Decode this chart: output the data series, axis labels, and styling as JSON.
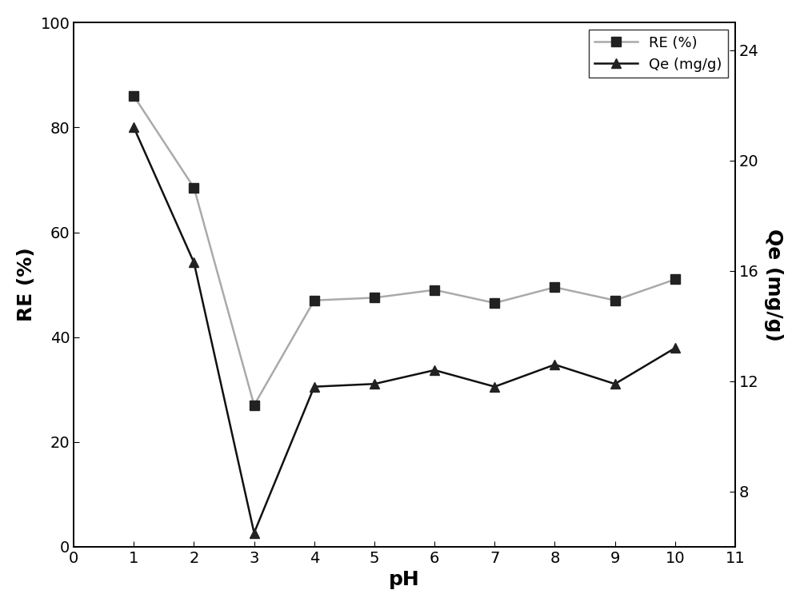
{
  "ph_values": [
    1,
    2,
    3,
    4,
    5,
    6,
    7,
    8,
    9,
    10
  ],
  "RE_values": [
    86,
    68.5,
    27,
    47,
    47.5,
    49,
    46.5,
    49.5,
    47,
    51
  ],
  "Qe_values": [
    21.2,
    16.3,
    6.5,
    11.8,
    11.9,
    12.4,
    11.8,
    12.6,
    11.9,
    13.2
  ],
  "RE_color": "#aaaaaa",
  "Qe_color": "#111111",
  "RE_label": "RE (%)",
  "Qe_label": "Qe (mg/g)",
  "xlabel": "pH",
  "ylabel_left": "RE (%)",
  "ylabel_right": "Qe (mg/g)",
  "xlim": [
    0,
    11
  ],
  "ylim_left": [
    0,
    100
  ],
  "ylim_right": [
    6,
    25
  ],
  "xticks": [
    0,
    1,
    2,
    3,
    4,
    5,
    6,
    7,
    8,
    9,
    10,
    11
  ],
  "yticks_left": [
    0,
    20,
    40,
    60,
    80,
    100
  ],
  "yticks_right": [
    8,
    12,
    16,
    20,
    24
  ],
  "background_color": "#ffffff",
  "label_fontsize": 18,
  "tick_fontsize": 14,
  "legend_fontsize": 13,
  "linewidth": 1.8,
  "marker_size": 8
}
